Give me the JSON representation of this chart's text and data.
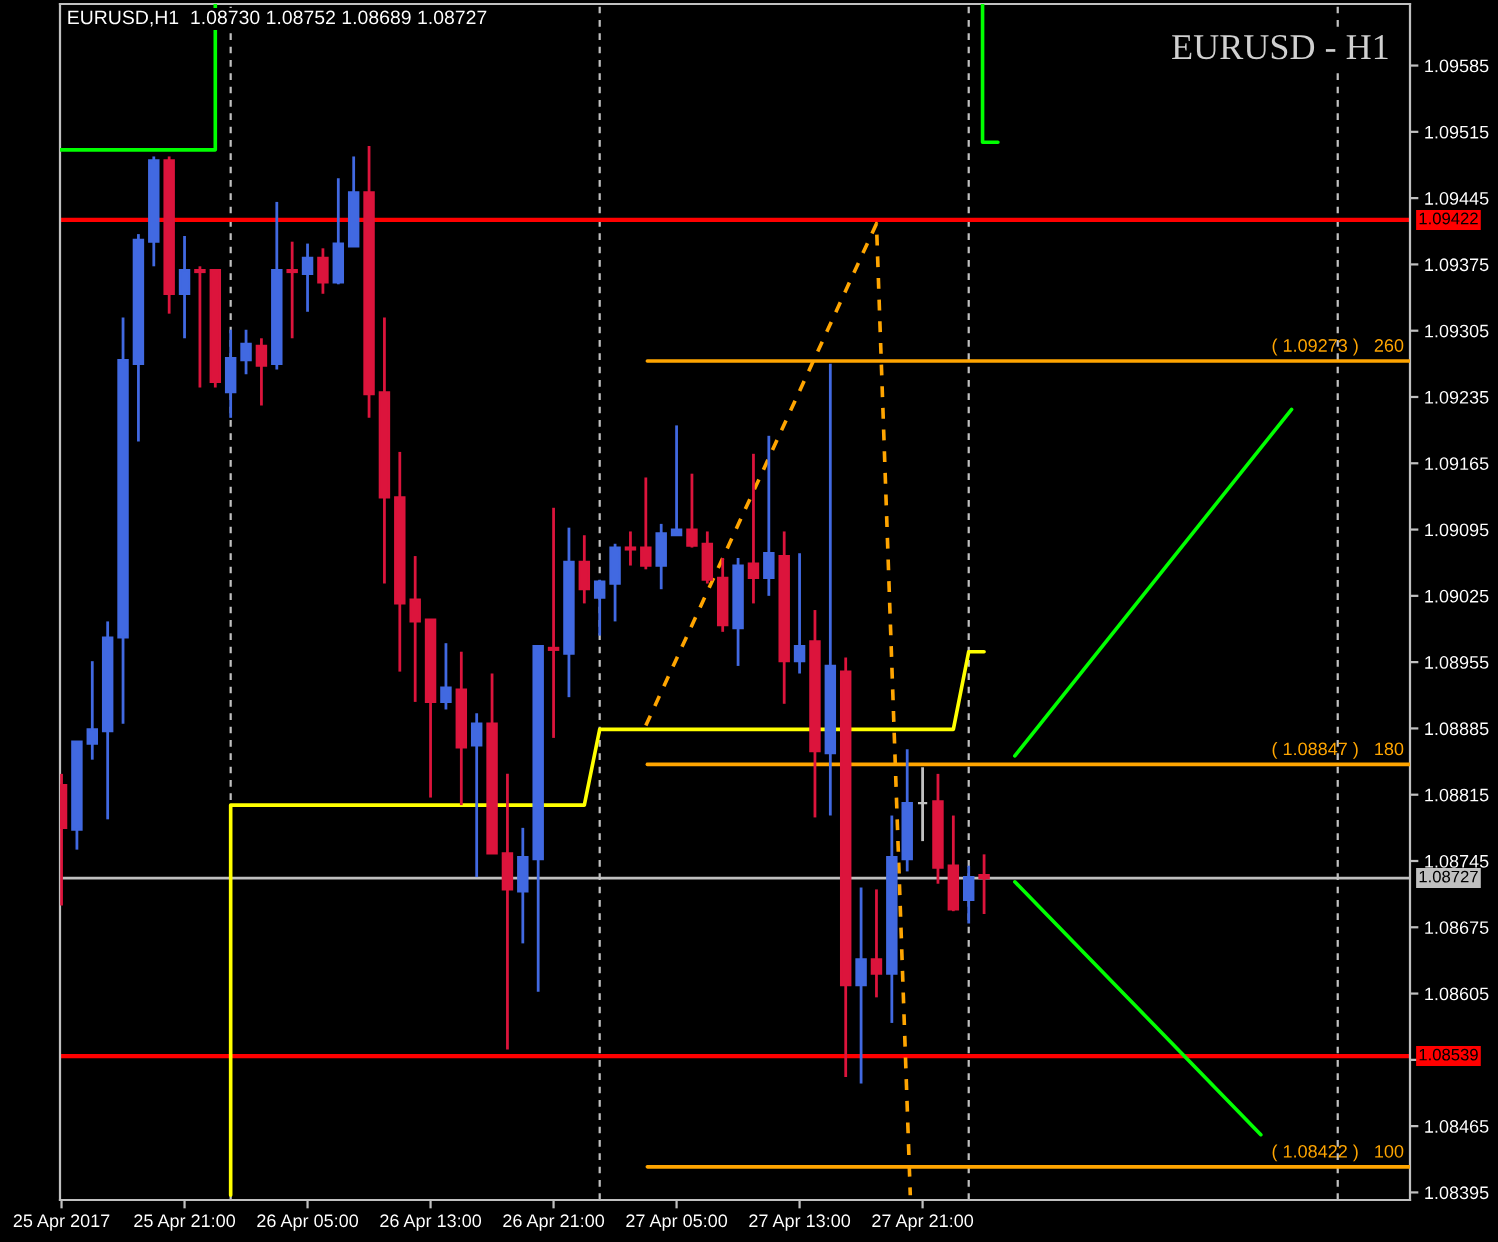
{
  "chart_data": {
    "type": "candlestick",
    "title": "EURUSD,H1  1.08730 1.08752 1.08689 1.08727",
    "subtitle": "EURUSD - H1",
    "x": [
      "2017-04-25T13:00",
      "2017-04-25T14:00",
      "2017-04-25T15:00",
      "2017-04-25T16:00",
      "2017-04-25T17:00",
      "2017-04-25T18:00",
      "2017-04-25T19:00",
      "2017-04-25T20:00",
      "2017-04-25T21:00",
      "2017-04-25T22:00",
      "2017-04-25T23:00",
      "2017-04-26T00:00",
      "2017-04-26T01:00",
      "2017-04-26T02:00",
      "2017-04-26T03:00",
      "2017-04-26T04:00",
      "2017-04-26T05:00",
      "2017-04-26T06:00",
      "2017-04-26T07:00",
      "2017-04-26T08:00",
      "2017-04-26T09:00",
      "2017-04-26T10:00",
      "2017-04-26T11:00",
      "2017-04-26T12:00",
      "2017-04-26T13:00",
      "2017-04-26T14:00",
      "2017-04-26T15:00",
      "2017-04-26T16:00",
      "2017-04-26T17:00",
      "2017-04-26T18:00",
      "2017-04-26T19:00",
      "2017-04-26T20:00",
      "2017-04-26T21:00",
      "2017-04-26T22:00",
      "2017-04-26T23:00",
      "2017-04-27T00:00",
      "2017-04-27T01:00",
      "2017-04-27T02:00",
      "2017-04-27T03:00",
      "2017-04-27T04:00",
      "2017-04-27T05:00",
      "2017-04-27T06:00",
      "2017-04-27T07:00",
      "2017-04-27T08:00",
      "2017-04-27T09:00",
      "2017-04-27T10:00",
      "2017-04-27T11:00",
      "2017-04-27T12:00",
      "2017-04-27T13:00",
      "2017-04-27T14:00",
      "2017-04-27T15:00",
      "2017-04-27T16:00",
      "2017-04-27T17:00",
      "2017-04-27T18:00",
      "2017-04-27T19:00",
      "2017-04-27T20:00",
      "2017-04-27T21:00",
      "2017-04-27T22:00",
      "2017-04-27T23:00",
      "2017-04-28T00:00",
      "2017-04-28T01:00"
    ],
    "ohlc": [
      [
        1.08825,
        1.08837,
        1.08698,
        1.0878
      ],
      [
        1.08778,
        1.08871,
        1.08757,
        1.08871
      ],
      [
        1.08869,
        1.08956,
        1.08852,
        1.08884
      ],
      [
        1.08882,
        1.08998,
        1.08789,
        1.08981
      ],
      [
        1.08981,
        1.09319,
        1.0889,
        1.09274
      ],
      [
        1.0927,
        1.09407,
        1.09188,
        1.09401
      ],
      [
        1.09399,
        1.09489,
        1.09373,
        1.09485
      ],
      [
        1.09485,
        1.09489,
        1.09323,
        1.09344
      ],
      [
        1.09344,
        1.09405,
        1.09297,
        1.09369
      ],
      [
        1.09369,
        1.09373,
        1.09245,
        1.09367
      ],
      [
        1.09369,
        1.09369,
        1.09245,
        1.09251
      ],
      [
        1.0924,
        1.09306,
        1.09213,
        1.09276
      ],
      [
        1.09274,
        1.09306,
        1.09259,
        1.09291
      ],
      [
        1.09289,
        1.09297,
        1.09226,
        1.09268
      ],
      [
        1.0927,
        1.09441,
        1.09264,
        1.09369
      ],
      [
        1.09369,
        1.09399,
        1.09297,
        1.09367
      ],
      [
        1.09365,
        1.09397,
        1.09325,
        1.09382
      ],
      [
        1.09382,
        1.09392,
        1.09344,
        1.09356
      ],
      [
        1.09356,
        1.09466,
        1.09354,
        1.09397
      ],
      [
        1.09394,
        1.09489,
        1.09394,
        1.09451
      ],
      [
        1.09451,
        1.095,
        1.09213,
        1.09238
      ],
      [
        1.0924,
        1.09319,
        1.09038,
        1.09129
      ],
      [
        1.09129,
        1.09177,
        1.08945,
        1.09017
      ],
      [
        1.09021,
        1.09067,
        1.08913,
        1.08998
      ],
      [
        1.09,
        1.09,
        1.08812,
        1.08913
      ],
      [
        1.08913,
        1.08975,
        1.08905,
        1.08928
      ],
      [
        1.08926,
        1.08966,
        1.08804,
        1.08865
      ],
      [
        1.08867,
        1.08901,
        1.08728,
        1.0889
      ],
      [
        1.0889,
        1.08943,
        1.08753,
        1.08753
      ],
      [
        1.08753,
        1.08837,
        1.08546,
        1.08715
      ],
      [
        1.08713,
        1.0878,
        1.08658,
        1.08749
      ],
      [
        1.08747,
        1.08972,
        1.08607,
        1.08972
      ],
      [
        1.0897,
        1.09118,
        1.08875,
        1.08968
      ],
      [
        1.08964,
        1.09097,
        1.08918,
        1.09061
      ],
      [
        1.09061,
        1.09089,
        1.09017,
        1.09032
      ],
      [
        1.09023,
        1.09042,
        1.08983,
        1.0904
      ],
      [
        1.09038,
        1.0908,
        1.08998,
        1.09076
      ],
      [
        1.09076,
        1.09093,
        1.09057,
        1.09074
      ],
      [
        1.09076,
        1.0915,
        1.09053,
        1.09057
      ],
      [
        1.09057,
        1.09101,
        1.09032,
        1.09091
      ],
      [
        1.09089,
        1.09205,
        1.09089,
        1.09095
      ],
      [
        1.09095,
        1.09154,
        1.09076,
        1.09078
      ],
      [
        1.0908,
        1.09093,
        1.09038,
        1.09042
      ],
      [
        1.09044,
        1.09065,
        1.08987,
        1.08994
      ],
      [
        1.08991,
        1.09065,
        1.08951,
        1.09057
      ],
      [
        1.09059,
        1.09175,
        1.09017,
        1.09044
      ],
      [
        1.09044,
        1.09194,
        1.09025,
        1.0907
      ],
      [
        1.09067,
        1.09093,
        1.08911,
        1.08956
      ],
      [
        1.08956,
        1.0907,
        1.08943,
        1.08972
      ],
      [
        1.08977,
        1.0901,
        1.08791,
        1.08861
      ],
      [
        1.08859,
        1.0927,
        1.08793,
        1.08951
      ],
      [
        1.08945,
        1.0896,
        1.08517,
        1.08614
      ],
      [
        1.08614,
        1.08717,
        1.0851,
        1.08641
      ],
      [
        1.08641,
        1.08715,
        1.08601,
        1.08626
      ],
      [
        1.08626,
        1.08793,
        1.08574,
        1.08749
      ],
      [
        1.08747,
        1.08863,
        1.08734,
        1.08806
      ],
      [
        1.08806,
        1.08844,
        1.08766,
        1.08806
      ],
      [
        1.08808,
        1.08837,
        1.08721,
        1.08738
      ],
      [
        1.0874,
        1.08793,
        1.08692,
        1.08694
      ],
      [
        1.08704,
        1.0874,
        1.08679,
        1.08728
      ],
      [
        1.0873,
        1.08752,
        1.08689,
        1.08727
      ]
    ],
    "colors": [
      "#dc143c",
      "#4169e1",
      "#4169e1",
      "#4169e1",
      "#4169e1",
      "#4169e1",
      "#4169e1",
      "#dc143c",
      "#4169e1",
      "#dc143c",
      "#dc143c",
      "#4169e1",
      "#4169e1",
      "#dc143c",
      "#4169e1",
      "#dc143c",
      "#4169e1",
      "#dc143c",
      "#4169e1",
      "#4169e1",
      "#dc143c",
      "#dc143c",
      "#dc143c",
      "#dc143c",
      "#dc143c",
      "#4169e1",
      "#dc143c",
      "#4169e1",
      "#dc143c",
      "#dc143c",
      "#4169e1",
      "#4169e1",
      "#dc143c",
      "#4169e1",
      "#dc143c",
      "#4169e1",
      "#4169e1",
      "#dc143c",
      "#dc143c",
      "#4169e1",
      "#4169e1",
      "#dc143c",
      "#dc143c",
      "#dc143c",
      "#4169e1",
      "#dc143c",
      "#4169e1",
      "#dc143c",
      "#4169e1",
      "#dc143c",
      "#4169e1",
      "#dc143c",
      "#4169e1",
      "#dc143c",
      "#4169e1",
      "#4169e1",
      "#c0c0c0",
      "#dc143c",
      "#dc143c",
      "#4169e1",
      "#dc143c"
    ],
    "series": [
      {
        "type": "line",
        "color": "#ffff00",
        "line_style": "solid",
        "x": [
          "2017-04-26T00:00",
          "2017-04-26T00:00",
          "2017-04-26T23:00",
          "2017-04-27T00:00",
          "2017-04-27T23:00",
          "2017-04-28T00:00",
          "2017-04-28T01:00"
        ],
        "values": [
          1.08392,
          1.08804,
          1.08804,
          1.08884,
          1.08884,
          1.08966,
          1.08966
        ]
      },
      {
        "type": "line",
        "color": "#ffa500",
        "line_style": "dashed",
        "x": [
          "2017-04-27T03:00",
          "2017-04-27T18:00",
          "2017-04-27T20:12"
        ],
        "values": [
          1.08888,
          1.09418,
          1.08392
        ]
      },
      {
        "type": "line",
        "color": "#ffa500",
        "line_style": "solid",
        "x": [
          "2017-04-27T03:06",
          "2017-04-29T04:42"
        ],
        "values": [
          1.09273,
          1.09273
        ]
      },
      {
        "type": "line",
        "color": "#ffa500",
        "line_style": "solid",
        "x": [
          "2017-04-27T03:06",
          "2017-04-29T04:42"
        ],
        "values": [
          1.08847,
          1.08847
        ]
      },
      {
        "type": "line",
        "color": "#ffa500",
        "line_style": "solid",
        "x": [
          "2017-04-27T03:06",
          "2017-04-29T04:42"
        ],
        "values": [
          1.08422,
          1.08422
        ]
      },
      {
        "type": "line",
        "color": "#00ff00",
        "line_style": "solid",
        "x": [
          "2017-04-25T12:54",
          "2017-04-25T23:00",
          "2017-04-25T23:00"
        ],
        "values": [
          1.09496,
          1.09496,
          1.0965
        ]
      },
      {
        "type": "line",
        "color": "#00ff00",
        "line_style": "solid",
        "x": [
          "2017-04-28T00:54",
          "2017-04-28T00:54",
          "2017-04-28T01:54"
        ],
        "values": [
          1.0965,
          1.09504,
          1.09504
        ]
      },
      {
        "type": "line",
        "color": "#00ff00",
        "line_style": "solid",
        "x": [
          "2017-04-28T03:00",
          "2017-04-28T21:00"
        ],
        "values": [
          1.08856,
          1.09222
        ]
      },
      {
        "type": "line",
        "color": "#00ff00",
        "line_style": "solid",
        "x": [
          "2017-04-28T03:00",
          "2017-04-28T19:00"
        ],
        "values": [
          1.08723,
          1.08456
        ]
      }
    ],
    "ref_lines": [
      {
        "axis": "y",
        "value": 1.09422,
        "label": "1.09422",
        "color": "#ff0000",
        "line_style": "solid"
      },
      {
        "axis": "y",
        "value": 1.08539,
        "label": "1.08539",
        "color": "#ff0000",
        "line_style": "solid"
      },
      {
        "axis": "y",
        "value": 1.08727,
        "label": "1.08727",
        "color": "#c0c0c0",
        "line_style": "solid"
      },
      {
        "axis": "x",
        "value": "2017-04-26T00:00",
        "color": "#c0c0c0",
        "line_style": "dashed"
      },
      {
        "axis": "x",
        "value": "2017-04-27T00:00",
        "color": "#c0c0c0",
        "line_style": "dashed"
      },
      {
        "axis": "x",
        "value": "2017-04-28T00:00",
        "color": "#c0c0c0",
        "line_style": "dashed"
      },
      {
        "axis": "x",
        "value": "2017-04-29T00:00",
        "color": "#c0c0c0",
        "line_style": "dashed"
      }
    ],
    "annotations": [
      {
        "text": "( 1.09273 )   260",
        "x": "2017-04-29T00:00",
        "y": 1.09273
      },
      {
        "text": "( 1.08847 )   180",
        "x": "2017-04-29T00:00",
        "y": 1.08847
      },
      {
        "text": "( 1.08422 )   100",
        "x": "2017-04-29T00:00",
        "y": 1.08422
      }
    ],
    "xlim": [
      "2017-04-25T12:54",
      "2017-04-29T04:42"
    ],
    "ylim": [
      1.08387,
      1.0965
    ],
    "xticks": [
      {
        "value": "2017-04-25T13:00",
        "label": "25 Apr 2017"
      },
      {
        "value": "2017-04-25T21:00",
        "label": "25 Apr 21:00"
      },
      {
        "value": "2017-04-26T05:00",
        "label": "26 Apr 05:00"
      },
      {
        "value": "2017-04-26T13:00",
        "label": "26 Apr 13:00"
      },
      {
        "value": "2017-04-26T21:00",
        "label": "26 Apr 21:00"
      },
      {
        "value": "2017-04-27T05:00",
        "label": "27 Apr 05:00"
      },
      {
        "value": "2017-04-27T13:00",
        "label": "27 Apr 13:00"
      },
      {
        "value": "2017-04-27T21:00",
        "label": "27 Apr 21:00"
      }
    ],
    "yticks": [
      1.09585,
      1.09515,
      1.09445,
      1.09375,
      1.09305,
      1.09235,
      1.09165,
      1.09095,
      1.09025,
      1.08955,
      1.08885,
      1.08815,
      1.08745,
      1.08675,
      1.08605,
      {
        "value": 1.08535,
        "label": null
      },
      1.08465,
      1.08395
    ],
    "grid": false,
    "legend": false
  }
}
